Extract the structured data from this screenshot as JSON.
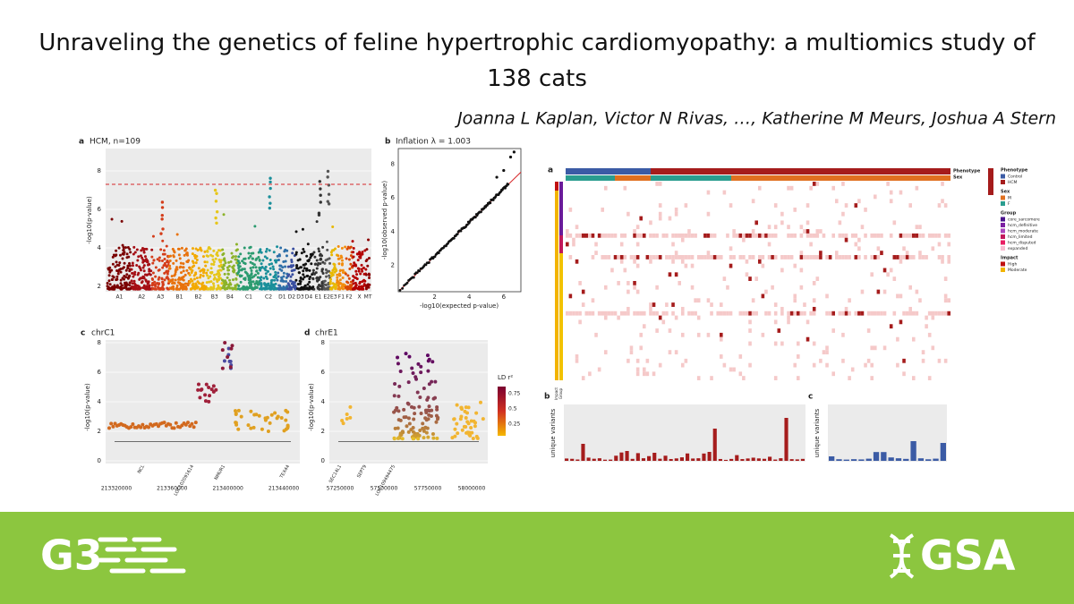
{
  "header": {
    "title": "Unraveling the genetics of feline hypertrophic cardiomyopathy: a multiomics study of 138 cats",
    "authors": "Joanna L Kaplan, Victor N Rivas, …, Katherine M Meurs, Joshua A Stern"
  },
  "figure": {
    "manhattan": {
      "label": "a",
      "title": "HCM, n=109",
      "y_label": "-log10(p-value)",
      "yticks": [
        "2",
        "4",
        "6",
        "8"
      ],
      "chromosomes": [
        "A1",
        "A2",
        "A3",
        "B1",
        "B2",
        "B3",
        "B4",
        "C1",
        "C2",
        "D1",
        "D2",
        "D3",
        "D4",
        "E1",
        "E2",
        "E3",
        "F1",
        "F2",
        "X",
        "MT"
      ]
    },
    "qq": {
      "label": "b",
      "title": "Inflation λ = 1.003",
      "x_label": "-log10(expected p-value)",
      "y_label": "-log10(observed p-value)",
      "xticks": [
        "2",
        "4",
        "6"
      ],
      "yticks": [
        "2",
        "4",
        "6",
        "8"
      ]
    },
    "region_c": {
      "label": "c",
      "title": "chrC1",
      "y_label": "-log10(p-value)",
      "yticks": [
        "0",
        "2",
        "4",
        "6",
        "8"
      ],
      "xticks": [
        "213320000",
        "213360000",
        "213400000",
        "213440000"
      ],
      "genes": [
        "NCL",
        "LOC102091614",
        "NMUR1",
        "TEX44"
      ]
    },
    "region_d": {
      "label": "d",
      "title": "chrE1",
      "y_label": "-log10(p-value)",
      "yticks": [
        "0",
        "2",
        "4",
        "6",
        "8"
      ],
      "xticks": [
        "57250000",
        "57500000",
        "57750000",
        "58000000"
      ],
      "genes": [
        "SEC14L1",
        "SEPT9",
        "LOC109494475"
      ],
      "legend_title": "LD r²",
      "legend_ticks": [
        "0.75",
        "0.5",
        "0.25"
      ]
    },
    "heatmap": {
      "label": "a",
      "top_annotations": [
        "Phenotype",
        "Sex"
      ],
      "side_annotations": [
        "Impact",
        "Group"
      ],
      "legend": [
        {
          "title": "Phenotype",
          "items": [
            "Control",
            "HCM"
          ]
        },
        {
          "title": "Sex",
          "items": [
            "M",
            "F"
          ]
        },
        {
          "title": "Group",
          "items": [
            "core_sarcomere",
            "hcm_definitive",
            "hcm_moderate",
            "hcm_limited",
            "hcm_disputed",
            "expanded"
          ]
        },
        {
          "title": "Impact",
          "items": [
            "High",
            "Moderate"
          ]
        }
      ]
    },
    "bars_hcm": {
      "label": "b",
      "title": "HCM",
      "y_label": "unique variants"
    },
    "bars_control": {
      "label": "c",
      "title": "Control",
      "y_label": "unique variants"
    }
  },
  "footer": {
    "journal": "G3",
    "society": "GSA"
  }
}
